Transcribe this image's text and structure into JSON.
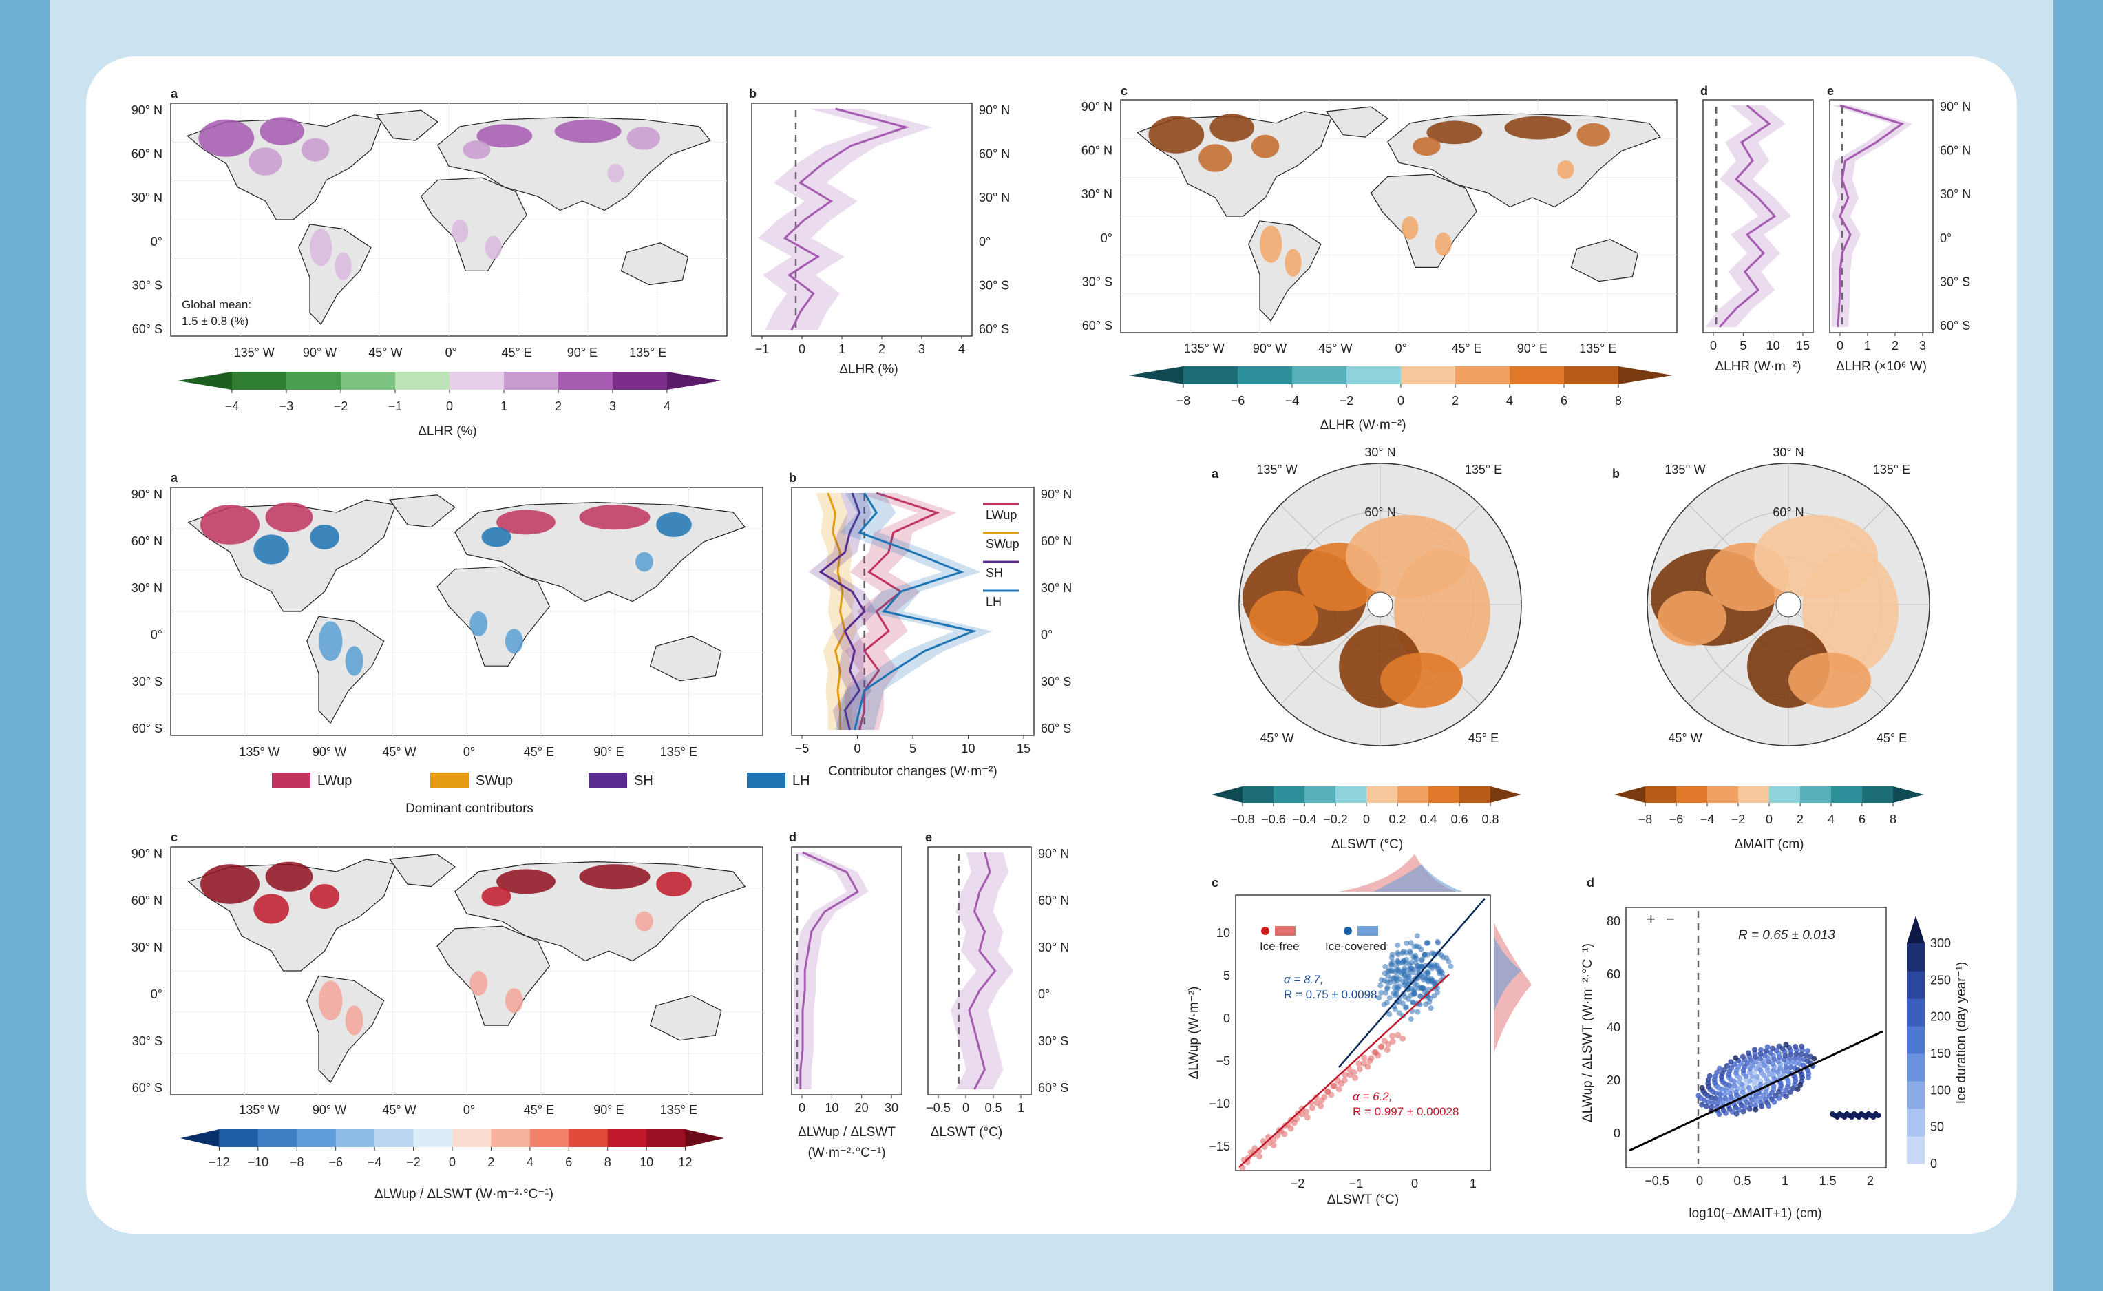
{
  "colors": {
    "bg": "#cbe3f1",
    "sidebar": "#6faed4",
    "card": "#ffffff",
    "land": "#e6e6e6",
    "purple": "#a45bb0",
    "purple_light": "#e6cfe9",
    "orange": "#e07a2a",
    "brown": "#7a3a10",
    "teal": "#2d8f99",
    "red": "#c0182a",
    "blue": "#2e6fb5",
    "lwup": "#c0345f",
    "swup": "#e49a12",
    "sh": "#5a2b8f",
    "lh": "#1f74b4"
  },
  "panels": {
    "p1": {
      "map_a": {
        "label": "a",
        "note1": "Global mean:",
        "note2": "1.5 ± 0.8 (%)"
      },
      "cb": {
        "ticks": [
          "−4",
          "−3",
          "−2",
          "−1",
          "0",
          "1",
          "2",
          "3",
          "4"
        ],
        "title": "ΔLHR (%)"
      },
      "profile_b": {
        "label": "b",
        "xticks": [
          "−1",
          "0",
          "1",
          "2",
          "3",
          "4"
        ],
        "xlabel": "ΔLHR (%)"
      }
    },
    "p2": {
      "map_c": {
        "label": "c"
      },
      "profile_d": {
        "label": "d",
        "xticks": [
          "0",
          "5",
          "10",
          "15"
        ],
        "xlabel": "ΔLHR (W·m⁻²)"
      },
      "profile_e": {
        "label": "e",
        "xticks": [
          "0",
          "1",
          "2",
          "3"
        ],
        "xlabel": "ΔLHR (×10⁶ W)"
      },
      "cb": {
        "ticks": [
          "−8",
          "−6",
          "−4",
          "−2",
          "0",
          "2",
          "4",
          "6",
          "8"
        ],
        "title": "ΔLHR (W·m⁻²)"
      }
    },
    "p3": {
      "map_a": {
        "label": "a"
      },
      "legend": {
        "items": [
          "LWup",
          "SWup",
          "SH",
          "LH"
        ],
        "title": "Dominant contributors"
      },
      "profile_b": {
        "label": "b",
        "xticks": [
          "−5",
          "0",
          "5",
          "10",
          "15"
        ],
        "xlabel": "Contributor changes (W·m⁻²)",
        "legend": [
          "LWup",
          "SWup",
          "SH",
          "LH"
        ]
      },
      "map_c": {
        "label": "c"
      },
      "cb": {
        "ticks": [
          "−12",
          "−10",
          "−8",
          "−6",
          "−4",
          "−2",
          "0",
          "2",
          "4",
          "6",
          "8",
          "10",
          "12"
        ],
        "title": "ΔLWup / ΔLSWT (W·m⁻²·°C⁻¹)"
      },
      "profile_d": {
        "label": "d",
        "xticks": [
          "0",
          "10",
          "20",
          "30"
        ],
        "xlabel1": "ΔLWup / ΔLSWT",
        "xlabel2": "(W·m⁻²·°C⁻¹)"
      },
      "profile_e": {
        "label": "e",
        "xticks": [
          "−0.5",
          "0",
          "0.5",
          "1"
        ],
        "xlabel": "ΔLSWT (°C)"
      }
    },
    "p4": {
      "polar_a": {
        "label": "a",
        "lon_labels": [
          "135° W",
          "30° N",
          "135° E",
          "45° W",
          "45° E",
          "60° N"
        ]
      },
      "polar_b": {
        "label": "b",
        "lon_labels": [
          "135° W",
          "30° N",
          "135° E",
          "45° W",
          "45° E",
          "60° N"
        ]
      },
      "cb_a": {
        "ticks": [
          "−0.8",
          "−0.6",
          "−0.4",
          "−0.2",
          "0",
          "0.2",
          "0.4",
          "0.6",
          "0.8"
        ],
        "title": "ΔLSWT (°C)"
      },
      "cb_b": {
        "ticks": [
          "−8",
          "−6",
          "−4",
          "−2",
          "0",
          "2",
          "4",
          "6",
          "8"
        ],
        "title": "ΔMAIT (cm)"
      },
      "scatter_c": {
        "label": "c",
        "xticks": [
          "−2",
          "−1",
          "0",
          "1"
        ],
        "yticks": [
          "10",
          "5",
          "0",
          "−5",
          "−10",
          "−15"
        ],
        "xlabel": "ΔLSWT (°C)",
        "ylabel": "ΔLWup (W·m⁻²)",
        "legend_free": "Ice-free",
        "legend_cov": "Ice-covered",
        "blue_a": "α = 8.7,",
        "blue_r": "R = 0.75 ± 0.0098",
        "red_a": "α = 6.2,",
        "red_r": "R = 0.997 ± 0.00028"
      },
      "scatter_d": {
        "label": "d",
        "xticks": [
          "−0.5",
          "0",
          "0.5",
          "1",
          "1.5",
          "2"
        ],
        "yticks": [
          "80",
          "60",
          "40",
          "20",
          "0"
        ],
        "xlabel": "log10(−ΔMAIT+1) (cm)",
        "ylabel": "ΔLWup / ΔLSWT (W·m⁻²·°C⁻¹)",
        "r_text": "R = 0.65 ± 0.013",
        "plus": "+",
        "minus": "−",
        "cb_ticks": [
          "300",
          "250",
          "200",
          "150",
          "100",
          "50",
          "0"
        ],
        "cb_title": "Ice duration (day year⁻¹)"
      }
    },
    "lat_labels": [
      "90° N",
      "60° N",
      "30° N",
      "0°",
      "30° S",
      "60° S"
    ],
    "lon_labels": [
      "135° W",
      "90° W",
      "45° W",
      "0°",
      "45° E",
      "90° E",
      "135° E"
    ]
  }
}
